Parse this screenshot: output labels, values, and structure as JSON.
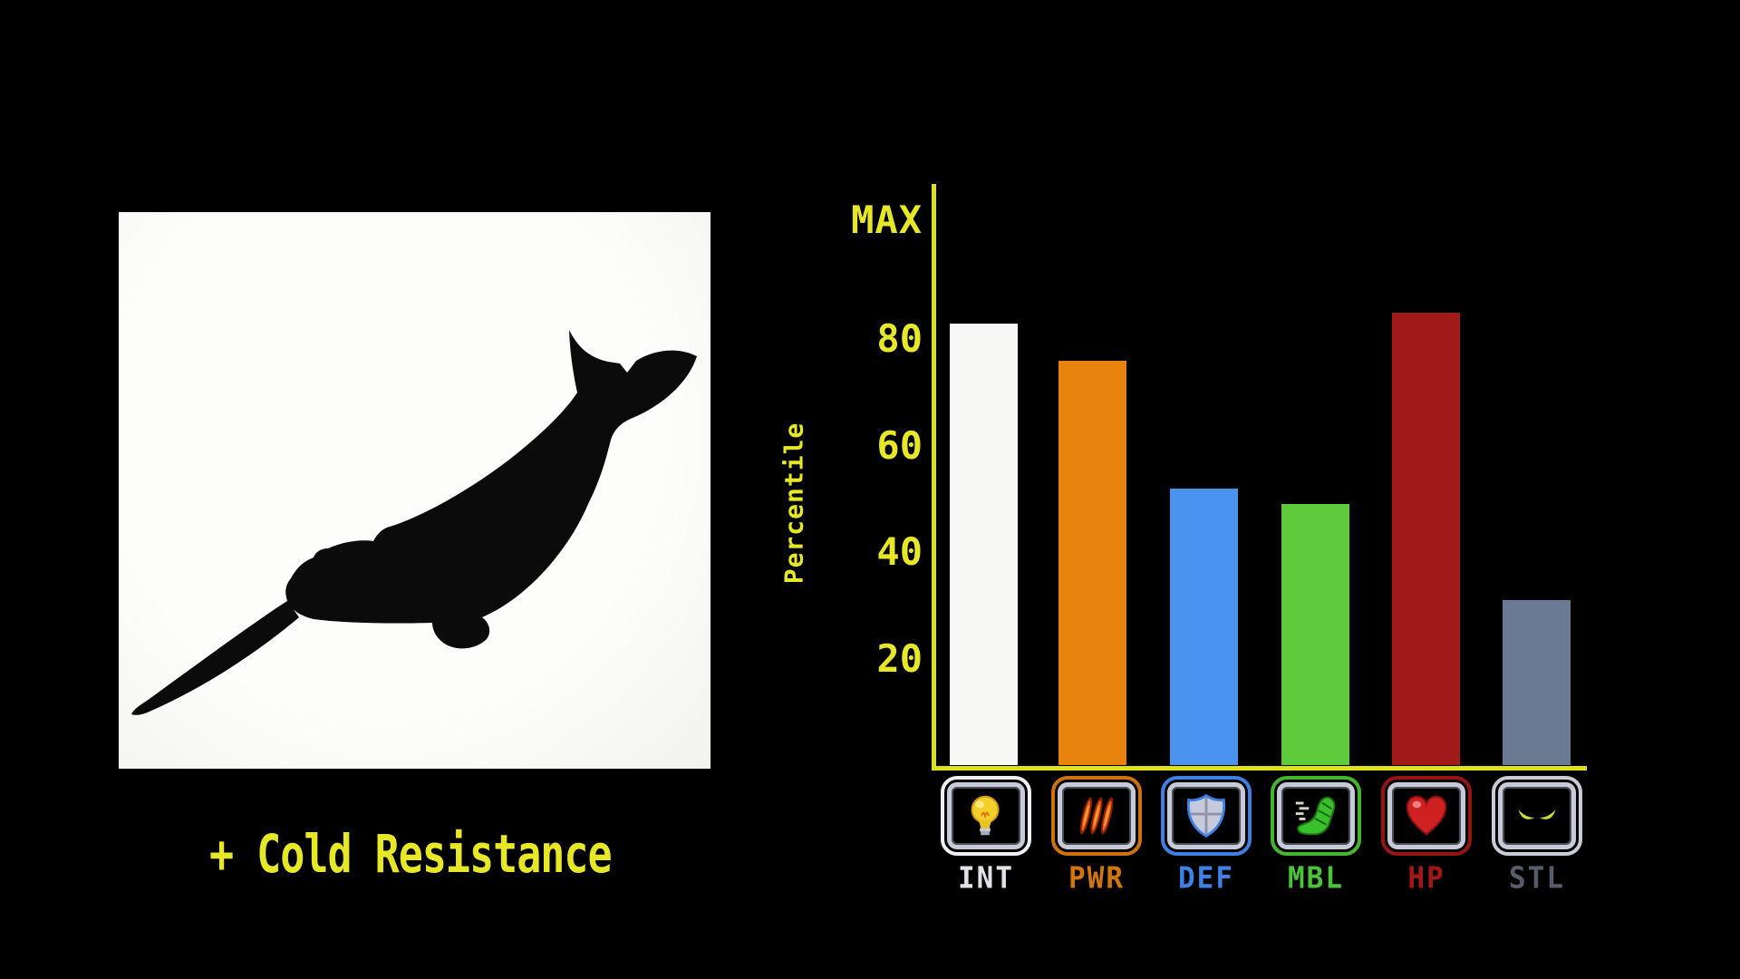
{
  "screen": {
    "background": "#000000"
  },
  "species_panel": {
    "silhouette": "narwhal",
    "panel_color": "#f8f8f5",
    "caption": "+ Cold Resistance",
    "caption_color": "#e6e827"
  },
  "chart_data": {
    "type": "bar",
    "ylabel": "Percentile",
    "max_label": "MAX",
    "ylim": [
      0,
      100
    ],
    "yticks": [
      20,
      40,
      60,
      80
    ],
    "grid": false,
    "categories": [
      "INT",
      "PWR",
      "DEF",
      "MBL",
      "HP",
      "STL"
    ],
    "values": [
      83,
      76,
      52,
      49,
      85,
      31
    ],
    "bar_colors": [
      "#f7f8f5",
      "#e8830e",
      "#4a94f0",
      "#5fca3b",
      "#a31a1a",
      "#6b7a93"
    ],
    "axis_color": "#dde01c",
    "text_color": "#e6e827"
  },
  "stat_buttons": [
    {
      "label": "INT",
      "icon": "lightbulb-icon",
      "accent": "#eef0f4",
      "label_color": "#e2e2e6"
    },
    {
      "label": "PWR",
      "icon": "claw-scratches-icon",
      "accent": "#d07110",
      "label_color": "#d0760f"
    },
    {
      "label": "DEF",
      "icon": "shield-icon",
      "accent": "#3e80e4",
      "label_color": "#3e80e4"
    },
    {
      "label": "MBL",
      "icon": "winged-foot-icon",
      "accent": "#43b531",
      "label_color": "#4cc23a"
    },
    {
      "label": "HP",
      "icon": "heart-icon",
      "accent": "#961414",
      "label_color": "#a31717"
    },
    {
      "label": "STL",
      "icon": "stealth-eyes-icon",
      "accent": "#c9cdd8",
      "label_color": "#585b68"
    }
  ]
}
